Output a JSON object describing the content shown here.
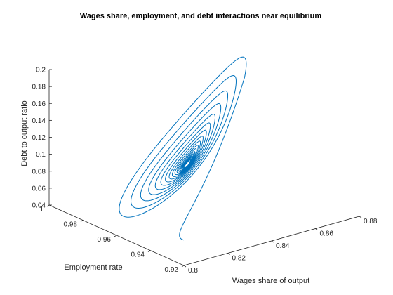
{
  "chart_data": {
    "type": "line",
    "title": "Wages share, employment, and debt interactions near equilibrium",
    "xlabel": "Wages share of output",
    "ylabel": "Employment rate",
    "zlabel": "Debt to output ratio",
    "xlim": [
      0.8,
      0.88
    ],
    "ylim": [
      0.92,
      1.0
    ],
    "zlim": [
      0.04,
      0.2
    ],
    "x_ticks": [
      "0.8",
      "0.82",
      "0.84",
      "0.86",
      "0.88"
    ],
    "y_ticks": [
      "0.92",
      "0.94",
      "0.96",
      "0.98",
      "1"
    ],
    "z_ticks": [
      "0.04",
      "0.06",
      "0.08",
      "0.1",
      "0.12",
      "0.14",
      "0.16",
      "0.18",
      "0.2"
    ],
    "grid": false,
    "series_color": "#0072BD",
    "spiral": {
      "start": [
        0.8,
        0.92,
        0.07
      ],
      "equilibrium": [
        0.84,
        0.97,
        0.085
      ],
      "turns": 17,
      "samples_per_turn": 180
    }
  }
}
